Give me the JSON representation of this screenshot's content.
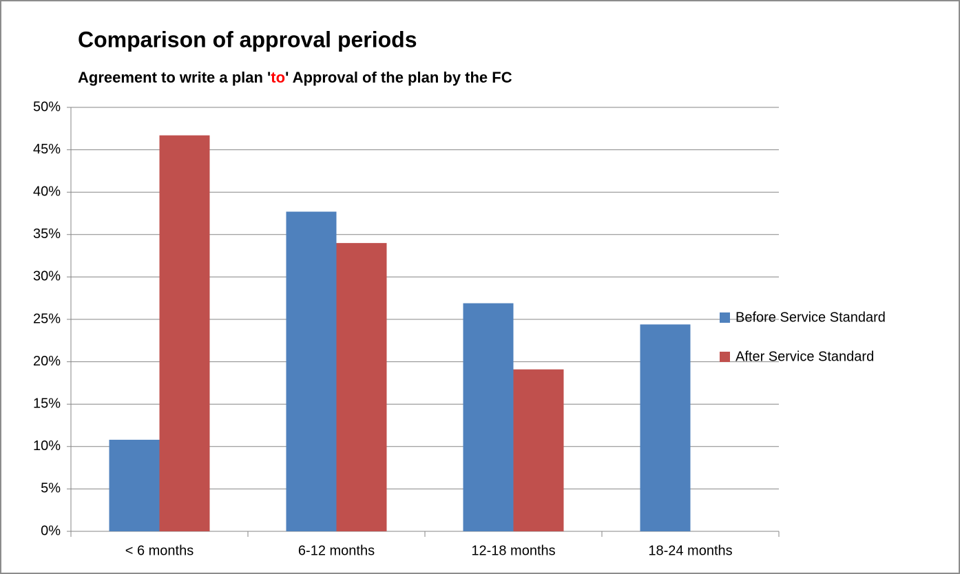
{
  "chart_data": {
    "type": "bar",
    "title": "Comparison of approval periods",
    "subtitle": [
      "Agreement to write a plan '",
      "to",
      "' Approval of the plan by the FC"
    ],
    "subtitle_highlight": {
      "index": 1,
      "color": "#ff0000"
    },
    "categories": [
      "< 6 months",
      "6-12 months",
      "12-18 months",
      "18-24 months"
    ],
    "series": [
      {
        "name": "Before Service Standard",
        "color": "#4f81bd",
        "values": [
          10.8,
          37.7,
          26.9,
          24.4
        ]
      },
      {
        "name": "After Service Standard",
        "color": "#c0504d",
        "values": [
          46.7,
          34.0,
          19.1,
          null
        ]
      }
    ],
    "ylim": [
      0,
      50
    ],
    "yticks": [
      {
        "value": 0,
        "label": "0%"
      },
      {
        "value": 5,
        "label": "5%"
      },
      {
        "value": 10,
        "label": "10%"
      },
      {
        "value": 15,
        "label": "15%"
      },
      {
        "value": 20,
        "label": "20%"
      },
      {
        "value": 25,
        "label": "25%"
      },
      {
        "value": 30,
        "label": "30%"
      },
      {
        "value": 35,
        "label": "35%"
      },
      {
        "value": 40,
        "label": "40%"
      },
      {
        "value": 45,
        "label": "45%"
      },
      {
        "value": 50,
        "label": "50%"
      }
    ],
    "grid": true,
    "legend": "right"
  }
}
